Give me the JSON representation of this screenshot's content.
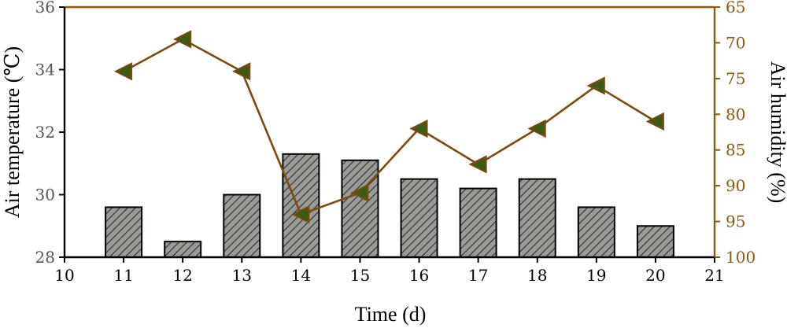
{
  "chart_data": {
    "type": "bar",
    "xlabel": "Time (d)",
    "ylabel": "Air temperature (℃)",
    "y2label": "Air humidity (%)",
    "xlim": [
      10,
      21
    ],
    "ylim": [
      28,
      36
    ],
    "y2lim": [
      65,
      100
    ],
    "y2_inverted": true,
    "x_ticks": [
      "10",
      "11",
      "12",
      "13",
      "14",
      "15",
      "16",
      "17",
      "18",
      "19",
      "20",
      "21"
    ],
    "y_ticks": [
      "28",
      "30",
      "32",
      "34",
      "36"
    ],
    "y2_ticks": [
      "65",
      "70",
      "75",
      "80",
      "85",
      "90",
      "95",
      "100"
    ],
    "series": [
      {
        "type": "bar",
        "axis": "left",
        "x": [
          11,
          12,
          13,
          14,
          15,
          16,
          17,
          18,
          19,
          20
        ],
        "values": [
          29.6,
          28.5,
          30.0,
          31.3,
          31.1,
          30.5,
          30.2,
          30.5,
          29.6,
          29.0
        ]
      },
      {
        "type": "line",
        "axis": "right",
        "x": [
          11,
          12,
          13,
          14,
          15,
          16,
          17,
          18,
          19,
          20
        ],
        "values": [
          74,
          69.5,
          74,
          94,
          91,
          82,
          87,
          82,
          76,
          81
        ]
      }
    ],
    "colors": {
      "bar_fill": "#9a9a96",
      "bar_hatch": "#2f2f2f",
      "bar_edge": "#000000",
      "line": "#7a4b14",
      "marker": "#3f5a12",
      "right_axis": "#8a5a14",
      "left_axis": "#555555"
    },
    "grid": false,
    "legend": "none"
  }
}
